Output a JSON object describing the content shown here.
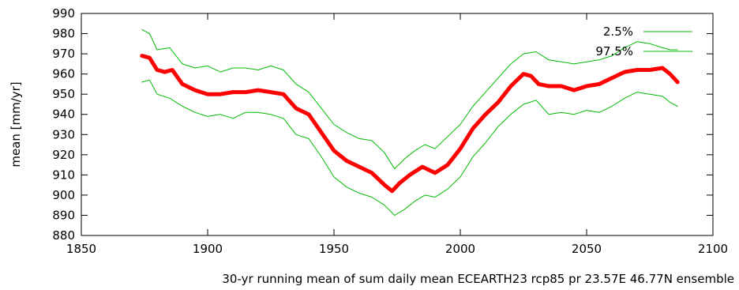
{
  "chart_data": {
    "type": "line",
    "title": "",
    "xlabel": "30-yr running mean of sum daily mean ECEARTH23 rcp85 pr 23.57E 46.77N ensemble",
    "ylabel": "mean [mm/yr]",
    "xlim": [
      1850,
      2100
    ],
    "ylim": [
      880,
      990
    ],
    "x_ticks": [
      1850,
      1900,
      1950,
      2000,
      2050,
      2100
    ],
    "y_ticks": [
      880,
      890,
      900,
      910,
      920,
      930,
      940,
      950,
      960,
      970,
      980,
      990
    ],
    "grid": false,
    "legend_position": "top-right",
    "series": [
      {
        "name": "",
        "color": "#ff0000",
        "x": [
          1874,
          1877,
          1880,
          1883,
          1886,
          1890,
          1895,
          1900,
          1905,
          1910,
          1915,
          1920,
          1925,
          1930,
          1935,
          1940,
          1945,
          1950,
          1955,
          1960,
          1965,
          1970,
          1973,
          1976,
          1980,
          1985,
          1990,
          1995,
          2000,
          2005,
          2010,
          2015,
          2020,
          2025,
          2028,
          2031,
          2035,
          2040,
          2045,
          2050,
          2055,
          2060,
          2065,
          2070,
          2075,
          2080,
          2083,
          2086
        ],
        "y": [
          969,
          968,
          962,
          961,
          962,
          955,
          952,
          950,
          950,
          951,
          951,
          952,
          951,
          950,
          943,
          940,
          931,
          922,
          917,
          914,
          911,
          905,
          902,
          906,
          910,
          914,
          911,
          915,
          923,
          933,
          940,
          946,
          954,
          960,
          959,
          955,
          954,
          954,
          952,
          954,
          955,
          958,
          961,
          962,
          962,
          963,
          960,
          956
        ]
      },
      {
        "name": "2.5%",
        "color": "#00bb00",
        "x": [
          1874,
          1877,
          1880,
          1885,
          1890,
          1895,
          1900,
          1905,
          1910,
          1915,
          1920,
          1925,
          1930,
          1935,
          1940,
          1945,
          1950,
          1955,
          1960,
          1965,
          1970,
          1974,
          1978,
          1982,
          1986,
          1990,
          1995,
          2000,
          2005,
          2010,
          2015,
          2020,
          2025,
          2030,
          2035,
          2040,
          2045,
          2050,
          2055,
          2060,
          2065,
          2070,
          2075,
          2080,
          2083,
          2086
        ],
        "y": [
          956,
          957,
          950,
          948,
          944,
          941,
          939,
          940,
          938,
          941,
          941,
          940,
          938,
          930,
          928,
          919,
          909,
          904,
          901,
          899,
          895,
          890,
          893,
          897,
          900,
          899,
          903,
          909,
          919,
          926,
          934,
          940,
          945,
          947,
          940,
          941,
          940,
          942,
          941,
          944,
          948,
          951,
          950,
          949,
          946,
          944
        ]
      },
      {
        "name": "97.5%",
        "color": "#00bb00",
        "x": [
          1874,
          1877,
          1880,
          1885,
          1890,
          1895,
          1900,
          1905,
          1910,
          1915,
          1920,
          1925,
          1930,
          1935,
          1940,
          1945,
          1950,
          1955,
          1960,
          1965,
          1970,
          1974,
          1978,
          1982,
          1986,
          1990,
          1995,
          2000,
          2005,
          2010,
          2015,
          2020,
          2025,
          2030,
          2035,
          2040,
          2045,
          2050,
          2055,
          2060,
          2065,
          2070,
          2075,
          2080,
          2083,
          2086
        ],
        "y": [
          982,
          980,
          972,
          973,
          965,
          963,
          964,
          961,
          963,
          963,
          962,
          964,
          962,
          955,
          951,
          943,
          935,
          931,
          928,
          927,
          921,
          913,
          918,
          922,
          925,
          923,
          929,
          935,
          944,
          951,
          958,
          965,
          970,
          971,
          967,
          966,
          965,
          966,
          967,
          969,
          973,
          976,
          975,
          973,
          972,
          972
        ]
      }
    ]
  }
}
